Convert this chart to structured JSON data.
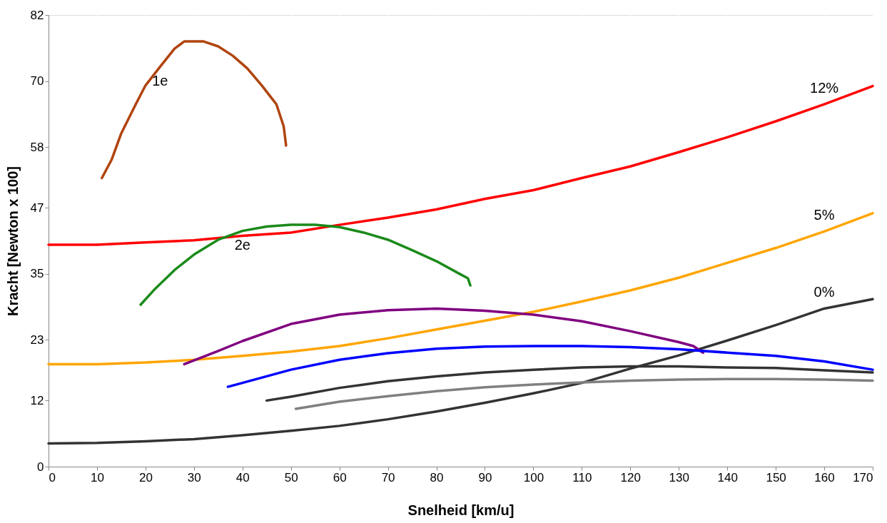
{
  "chart_data": {
    "type": "line",
    "xlabel": "Snelheid [km/u]",
    "ylabel": "Kracht   [Newton x 100]",
    "xlim": [
      0,
      170
    ],
    "xticks": [
      0,
      10,
      20,
      30,
      40,
      50,
      60,
      70,
      80,
      90,
      100,
      110,
      120,
      130,
      140,
      150,
      160,
      170
    ],
    "ylim": [
      0,
      82
    ],
    "yticks": [
      0,
      12,
      23,
      35,
      47,
      58,
      70,
      82
    ],
    "grid": "x",
    "legend": false,
    "marker": "none",
    "line_style": "solid",
    "series": [
      {
        "name": "12%",
        "color": "#ff0000",
        "x": [
          0,
          10,
          20,
          30,
          40,
          50,
          60,
          70,
          80,
          90,
          100,
          110,
          120,
          130,
          140,
          150,
          160,
          170
        ],
        "values": [
          40.3,
          40.3,
          40.7,
          41.1,
          41.9,
          42.5,
          43.9,
          45.2,
          46.7,
          48.6,
          50.2,
          52.4,
          54.5,
          57.1,
          59.8,
          62.7,
          65.8,
          69.1
        ]
      },
      {
        "name": "5%",
        "color": "#ffa500",
        "x": [
          0,
          10,
          20,
          30,
          40,
          50,
          60,
          70,
          80,
          90,
          100,
          110,
          120,
          130,
          140,
          150,
          160,
          170
        ],
        "values": [
          18.6,
          18.6,
          18.9,
          19.4,
          20.1,
          20.9,
          21.9,
          23.3,
          24.9,
          26.5,
          28.1,
          30.0,
          32.0,
          34.3,
          37.0,
          39.7,
          42.7,
          46.0
        ]
      },
      {
        "name": "0%",
        "color": "#333333",
        "x": [
          0,
          10,
          20,
          30,
          40,
          50,
          60,
          70,
          80,
          90,
          100,
          110,
          120,
          130,
          140,
          150,
          160,
          170
        ],
        "values": [
          4.2,
          4.3,
          4.6,
          5.0,
          5.7,
          6.5,
          7.4,
          8.6,
          10.0,
          11.6,
          13.3,
          15.2,
          17.8,
          20.2,
          22.9,
          25.7,
          28.7,
          30.4
        ]
      },
      {
        "name": "1e",
        "color": "#b0440e",
        "x": [
          11,
          13,
          15,
          18,
          20,
          23,
          26,
          28,
          32,
          35,
          38,
          41,
          44,
          47,
          48.5,
          49
        ],
        "values": [
          52.4,
          55.7,
          60.5,
          65.8,
          69.2,
          72.6,
          75.9,
          77.2,
          77.2,
          76.3,
          74.6,
          72.3,
          69.2,
          65.8,
          61.8,
          58.3
        ]
      },
      {
        "name": "2e",
        "color": "#1a8a1a",
        "x": [
          19,
          22,
          26,
          30,
          35,
          40,
          45,
          50,
          55,
          60,
          65,
          70,
          75,
          80,
          85,
          86.5,
          87
        ],
        "values": [
          29.4,
          32.3,
          35.7,
          38.5,
          41.2,
          42.8,
          43.6,
          43.9,
          43.9,
          43.5,
          42.5,
          41.2,
          39.3,
          37.3,
          34.9,
          34.2,
          32.9
        ]
      },
      {
        "color": "#800080",
        "x": [
          28,
          35,
          40,
          50,
          60,
          70,
          80,
          90,
          100,
          110,
          120,
          130,
          133,
          135
        ],
        "values": [
          18.6,
          21.0,
          22.8,
          25.9,
          27.6,
          28.4,
          28.7,
          28.3,
          27.6,
          26.4,
          24.6,
          22.6,
          21.9,
          20.7
        ]
      },
      {
        "color": "#0000ff",
        "x": [
          37,
          40,
          50,
          60,
          70,
          80,
          90,
          100,
          110,
          120,
          130,
          140,
          150,
          160,
          170
        ],
        "values": [
          14.5,
          15.2,
          17.6,
          19.4,
          20.6,
          21.4,
          21.8,
          21.9,
          21.9,
          21.7,
          21.3,
          20.7,
          20.1,
          19.1,
          17.6
        ]
      },
      {
        "color": "#333333",
        "x": [
          45,
          50,
          60,
          70,
          80,
          90,
          100,
          110,
          120,
          130,
          140,
          150,
          160,
          170
        ],
        "values": [
          12.0,
          12.7,
          14.3,
          15.5,
          16.4,
          17.1,
          17.6,
          18.0,
          18.2,
          18.2,
          18.0,
          17.9,
          17.5,
          17.1
        ]
      },
      {
        "color": "#808080",
        "x": [
          51,
          60,
          70,
          80,
          90,
          100,
          110,
          120,
          130,
          140,
          150,
          160,
          170
        ],
        "values": [
          10.5,
          11.8,
          12.8,
          13.7,
          14.4,
          14.9,
          15.3,
          15.6,
          15.8,
          15.9,
          15.9,
          15.8,
          15.6
        ]
      }
    ]
  }
}
